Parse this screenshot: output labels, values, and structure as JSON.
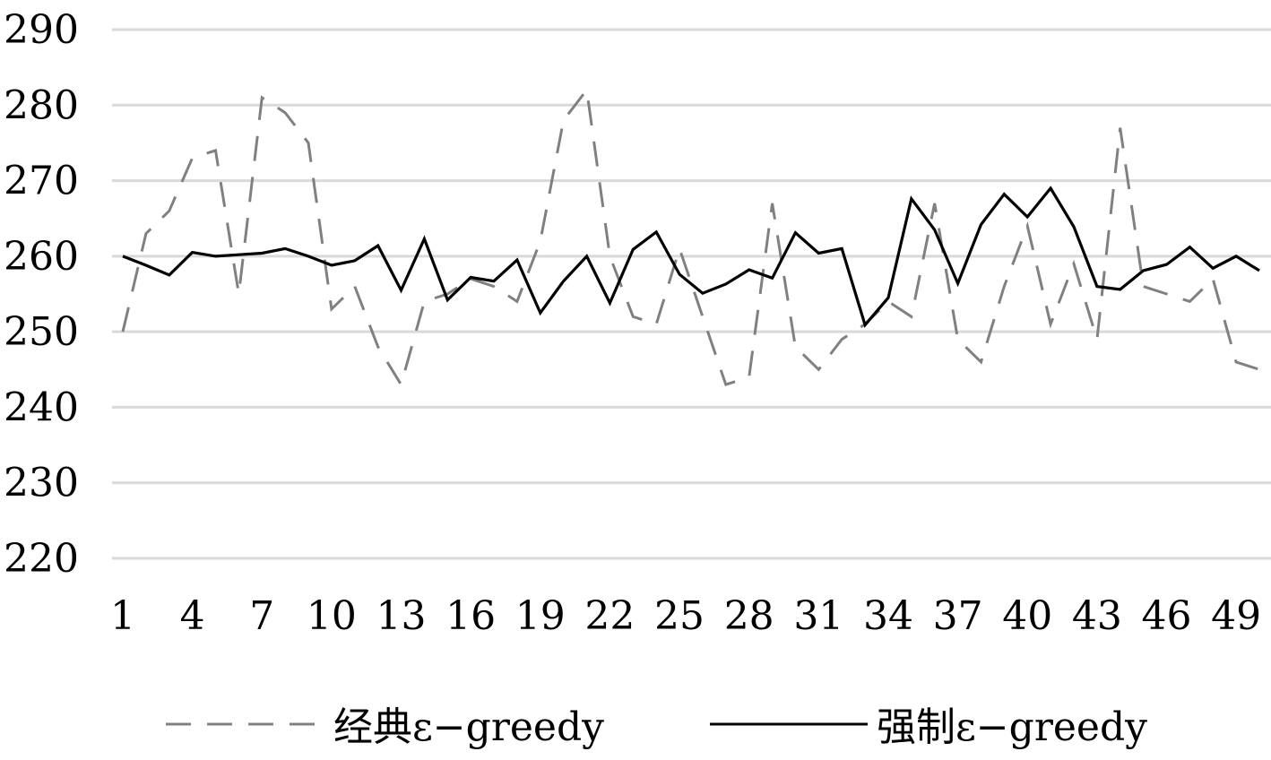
{
  "chart_data": {
    "type": "line",
    "title": "",
    "xlabel": "",
    "ylabel": "",
    "x": [
      1,
      2,
      3,
      4,
      5,
      6,
      7,
      8,
      9,
      10,
      11,
      12,
      13,
      14,
      15,
      16,
      17,
      18,
      19,
      20,
      21,
      22,
      23,
      24,
      25,
      26,
      27,
      28,
      29,
      30,
      31,
      32,
      33,
      34,
      35,
      36,
      37,
      38,
      39,
      40,
      41,
      42,
      43,
      44,
      45,
      46,
      47,
      48,
      49,
      50
    ],
    "x_tick_labels": [
      "1",
      "4",
      "7",
      "10",
      "13",
      "16",
      "19",
      "22",
      "25",
      "28",
      "31",
      "34",
      "37",
      "40",
      "43",
      "46",
      "49"
    ],
    "y_tick_labels": [
      "220",
      "230",
      "240",
      "250",
      "260",
      "270",
      "280",
      "290"
    ],
    "ylim": [
      220,
      290
    ],
    "grid": true,
    "legend_position": "bottom",
    "series": [
      {
        "name": "经典ε−greedy",
        "style": "dashed",
        "color": "#808080",
        "values": [
          250,
          263,
          266,
          273,
          274,
          255,
          281,
          279,
          275,
          253,
          256,
          248,
          243,
          254,
          255,
          257,
          256,
          254,
          262,
          278,
          282,
          260,
          252,
          251,
          261,
          252,
          243,
          244,
          267,
          248,
          245,
          249,
          251,
          254,
          252,
          267,
          249,
          246,
          256,
          264,
          251,
          259,
          249,
          277,
          256,
          255,
          254,
          257,
          246,
          245
        ]
      },
      {
        "name": "强制ε−greedy",
        "style": "solid",
        "color": "#000000",
        "values": [
          260,
          258.8,
          257.5,
          260.5,
          260,
          260.2,
          260.4,
          261,
          260,
          258.8,
          259.4,
          261.4,
          255.5,
          262.3,
          254.2,
          257.2,
          256.7,
          259.5,
          252.5,
          256.7,
          260,
          253.8,
          260.9,
          263.2,
          257.6,
          255.1,
          256.3,
          258.2,
          257.1,
          263.1,
          260.4,
          261,
          250.9,
          254.5,
          267.6,
          263.5,
          256.4,
          264.2,
          268.2,
          265.2,
          269,
          263.9,
          256,
          255.6,
          258.1,
          258.9,
          261.2,
          258.4,
          260,
          258.1
        ]
      }
    ]
  }
}
